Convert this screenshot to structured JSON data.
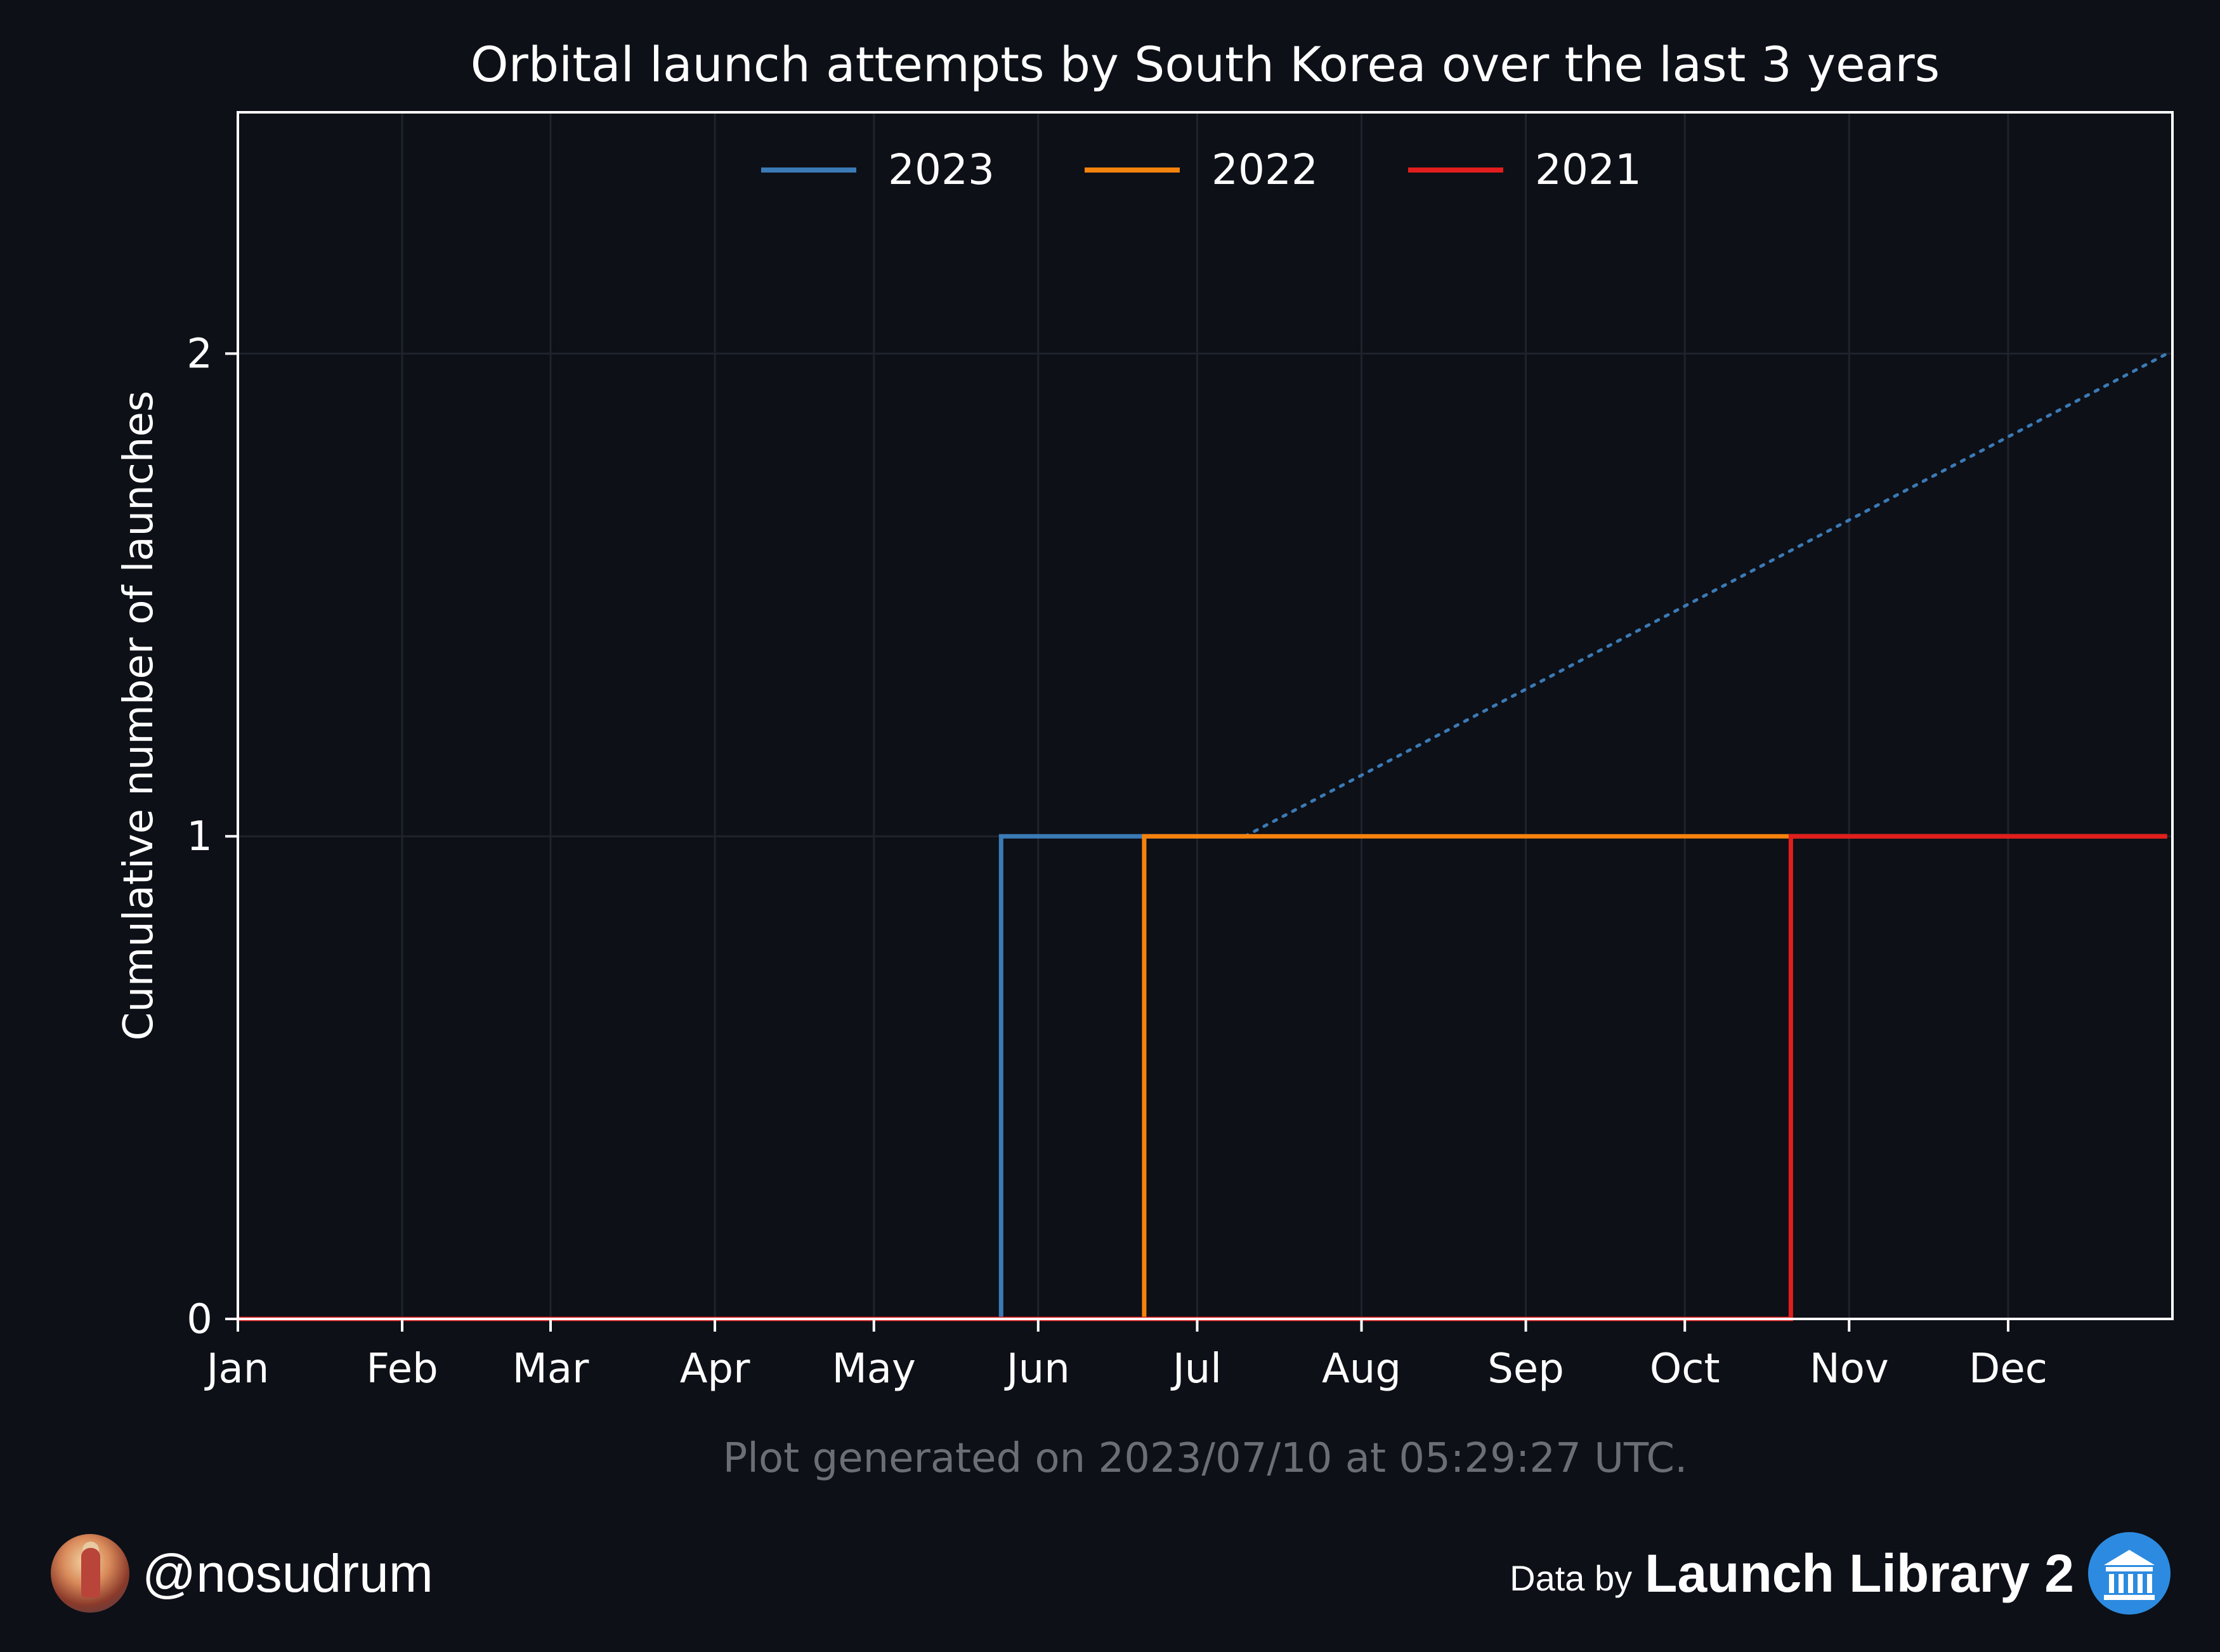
{
  "chart_data": {
    "type": "line",
    "title": "Orbital launch attempts by South Korea over the last 3 years",
    "xlabel": "",
    "ylabel": "Cumulative number of launches",
    "x_ticks": [
      "Jan",
      "Feb",
      "Mar",
      "Apr",
      "May",
      "Jun",
      "Jul",
      "Aug",
      "Sep",
      "Oct",
      "Nov",
      "Dec"
    ],
    "y_ticks": [
      "0",
      "1",
      "2"
    ],
    "xlim": [
      "Jan 1",
      "Dec 31"
    ],
    "ylim": [
      0,
      2.5
    ],
    "grid": true,
    "legend_position": "top-center",
    "series": [
      {
        "name": "2023",
        "color": "#3b7ab5",
        "step": "post",
        "points": [
          [
            "Jan 1",
            0
          ],
          [
            "May 25",
            1
          ],
          [
            "Jul 10",
            1
          ]
        ]
      },
      {
        "name": "2022",
        "color": "#f5820d",
        "step": "post",
        "points": [
          [
            "Jan 1",
            0
          ],
          [
            "Jun 21",
            1
          ],
          [
            "Dec 31",
            1
          ]
        ]
      },
      {
        "name": "2021",
        "color": "#e11d1d",
        "step": "post",
        "points": [
          [
            "Jan 1",
            0
          ],
          [
            "Oct 21",
            1
          ],
          [
            "Dec 31",
            1
          ]
        ]
      }
    ],
    "projection": {
      "series": "2023",
      "style": "dotted",
      "color": "#3b7ab5",
      "points": [
        [
          "Jul 10",
          1
        ],
        [
          "Dec 31",
          2
        ]
      ]
    },
    "annotation": "Plot generated on 2023/07/10 at 05:29:27 UTC."
  },
  "footer": {
    "handle": "@nosudrum",
    "data_by": "Data by",
    "source": "Launch Library 2"
  }
}
